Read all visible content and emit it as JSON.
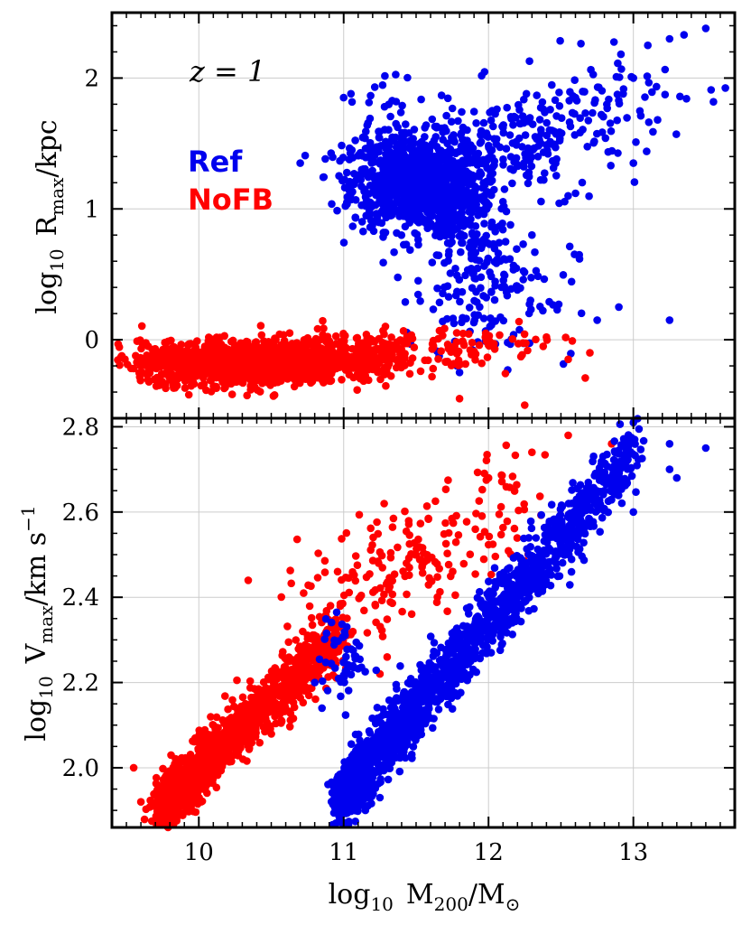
{
  "chart_data": [
    {
      "type": "scatter",
      "panel": "top",
      "ylabel": {
        "prefix": "log",
        "sub1": "10",
        "main": "R",
        "sub2": "max",
        "suffix": "/kpc"
      },
      "xlim": [
        9.4,
        13.7
      ],
      "ylim": [
        -0.6,
        2.5
      ],
      "yticks": [
        0,
        1,
        2
      ],
      "yticks_labels": [
        "0",
        "1",
        "2"
      ],
      "grid": true,
      "annotation": "z = 1",
      "legend": {
        "placement": "upper-left",
        "entries": [
          {
            "label": "Ref",
            "color": "#0000ee"
          },
          {
            "label": "NoFB",
            "color": "#ff0000"
          }
        ]
      },
      "series": [
        {
          "name": "Ref",
          "color": "#0000ee",
          "clusters": [
            {
              "cx": 11.5,
              "cy": 1.2,
              "sx": 0.22,
              "sy": 0.18,
              "n": 900,
              "rot": 0
            },
            {
              "cx": 11.85,
              "cy": 0.9,
              "sx": 0.15,
              "sy": 0.35,
              "n": 250,
              "rot": 0
            },
            {
              "cx": 12.35,
              "cy": 1.55,
              "sx": 0.45,
              "sy": 0.22,
              "n": 260,
              "rot": 0.35
            },
            {
              "cx": 12.1,
              "cy": 0.35,
              "sx": 0.25,
              "sy": 0.25,
              "n": 90,
              "rot": 0
            },
            {
              "cx": 11.2,
              "cy": 1.5,
              "sx": 0.12,
              "sy": 0.25,
              "n": 60,
              "rot": 0
            }
          ],
          "points": [
            [
              13.5,
              2.38
            ],
            [
              13.35,
              2.33
            ],
            [
              13.25,
              2.3
            ],
            [
              13.1,
              2.25
            ],
            [
              13.0,
              2.0
            ],
            [
              13.0,
              1.35
            ],
            [
              13.25,
              0.15
            ],
            [
              12.75,
              0.15
            ],
            [
              12.9,
              0.25
            ],
            [
              12.6,
              1.85
            ],
            [
              11.05,
              1.88
            ],
            [
              11.8,
              -0.25
            ],
            [
              12.3,
              0.8
            ],
            [
              11.0,
              1.85
            ],
            [
              10.7,
              1.35
            ]
          ]
        },
        {
          "name": "NoFB",
          "color": "#ff0000",
          "clusters": [
            {
              "cx": 10.3,
              "cy": -0.18,
              "sx": 0.35,
              "sy": 0.08,
              "n": 1300,
              "rot": 0
            },
            {
              "cx": 11.0,
              "cy": -0.12,
              "sx": 0.35,
              "sy": 0.08,
              "n": 350,
              "rot": 0
            },
            {
              "cx": 11.9,
              "cy": -0.05,
              "sx": 0.3,
              "sy": 0.08,
              "n": 60,
              "rot": 0
            }
          ],
          "points": [
            [
              9.55,
              -0.22
            ],
            [
              9.6,
              -0.15
            ],
            [
              9.65,
              -0.05
            ],
            [
              12.25,
              -0.5
            ],
            [
              12.55,
              -0.15
            ],
            [
              12.7,
              -0.1
            ],
            [
              11.8,
              -0.45
            ],
            [
              9.85,
              -0.35
            ],
            [
              12.4,
              0.02
            ]
          ]
        }
      ]
    },
    {
      "type": "scatter",
      "panel": "bottom",
      "xlabel": {
        "prefix": "log",
        "sub1": "10",
        "main": "M",
        "sub2": "200",
        "mid": "/M",
        "sub3": "⊙"
      },
      "ylabel": {
        "prefix": "log",
        "sub1": "10",
        "main": "V",
        "sub2": "max",
        "suffix": "/km s",
        "sup": "−1"
      },
      "xlim": [
        9.4,
        13.7
      ],
      "ylim": [
        1.86,
        2.82
      ],
      "xticks": [
        10,
        11,
        12,
        13
      ],
      "xticks_labels": [
        "10",
        "11",
        "12",
        "13"
      ],
      "yticks": [
        2.0,
        2.2,
        2.4,
        2.6,
        2.8
      ],
      "yticks_labels": [
        "2.0",
        "2.2",
        "2.4",
        "2.6",
        "2.8"
      ],
      "grid": true,
      "series": [
        {
          "name": "NoFB",
          "color": "#ff0000",
          "relation": {
            "x0": 9.9,
            "y0": 1.96,
            "slope": 0.33,
            "xmin": 9.75,
            "xmax": 11.0,
            "scatter": 0.035,
            "n": 1400
          },
          "extra_clusters": [
            {
              "cx": 11.6,
              "cy": 2.52,
              "sx": 0.3,
              "sy": 0.06,
              "n": 110,
              "rot": 0
            },
            {
              "cx": 12.1,
              "cy": 2.65,
              "sx": 0.2,
              "sy": 0.05,
              "n": 30,
              "rot": 0
            },
            {
              "cx": 11.1,
              "cy": 2.38,
              "sx": 0.25,
              "sy": 0.05,
              "n": 60,
              "rot": 0
            }
          ],
          "points": [
            [
              9.55,
              2.0
            ],
            [
              9.6,
              1.92
            ],
            [
              9.75,
              1.9
            ],
            [
              12.55,
              2.78
            ],
            [
              12.85,
              2.76
            ],
            [
              12.3,
              2.74
            ],
            [
              11.3,
              2.26
            ],
            [
              11.25,
              2.22
            ],
            [
              12.0,
              2.68
            ]
          ]
        },
        {
          "name": "Ref",
          "color": "#0000ee",
          "relation": {
            "x0": 11.2,
            "y0": 2.02,
            "slope": 0.4,
            "xmin": 11.0,
            "xmax": 13.0,
            "scatter": 0.04,
            "n": 1700
          },
          "extra_clusters": [
            {
              "cx": 11.0,
              "cy": 2.25,
              "sx": 0.08,
              "sy": 0.05,
              "n": 50,
              "rot": 0
            }
          ],
          "points": [
            [
              13.5,
              2.75
            ],
            [
              13.25,
              2.76
            ],
            [
              13.3,
              2.68
            ],
            [
              13.25,
              2.7
            ],
            [
              10.8,
              2.2
            ],
            [
              10.85,
              2.14
            ],
            [
              11.15,
              1.9
            ],
            [
              11.25,
              1.93
            ],
            [
              13.0,
              2.6
            ],
            [
              12.6,
              2.6
            ]
          ]
        }
      ]
    }
  ]
}
